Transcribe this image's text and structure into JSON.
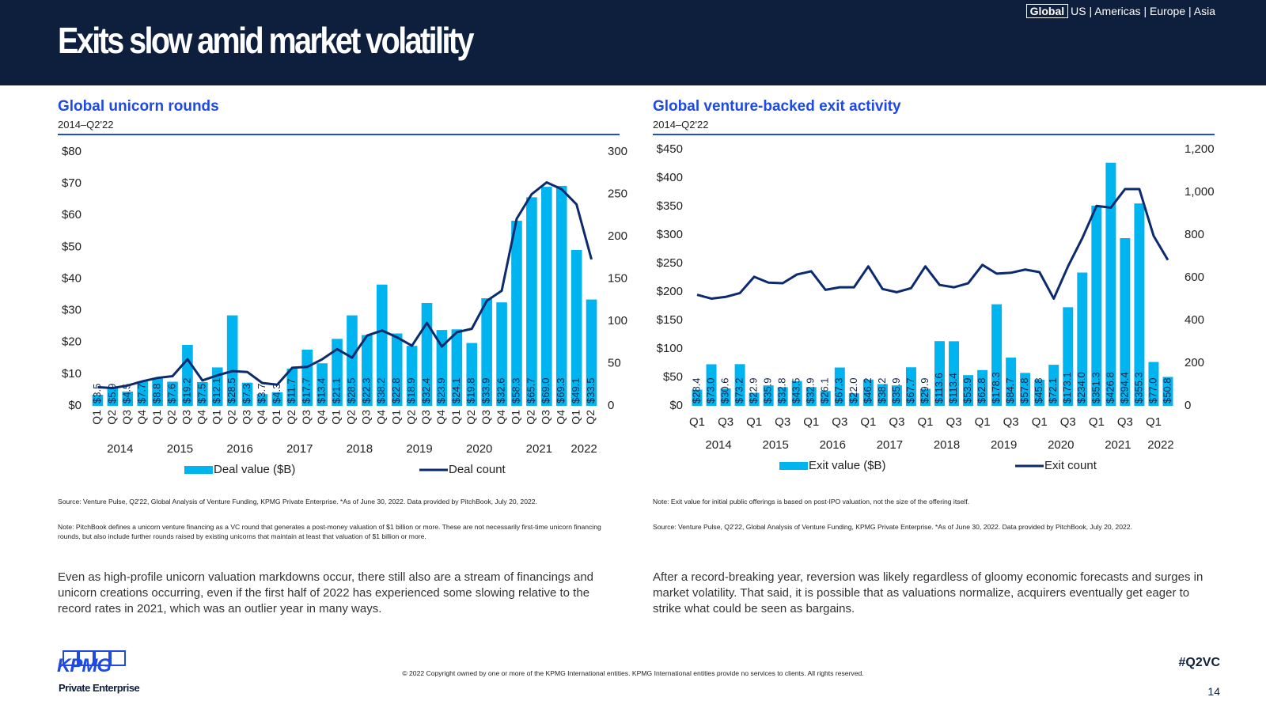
{
  "header": {
    "title": "Exits slow amid market volatility",
    "nav_active": "Global",
    "nav_rest": "US | Americas | Europe | Asia"
  },
  "chart_data": [
    {
      "type": "bar_line",
      "title": "Global unicorn rounds",
      "subtitle": "2014–Q2'22",
      "categories": [
        "Q1",
        "Q2",
        "Q3",
        "Q4",
        "Q1",
        "Q2",
        "Q3",
        "Q4",
        "Q1",
        "Q2",
        "Q3",
        "Q4",
        "Q1",
        "Q2",
        "Q3",
        "Q4",
        "Q1",
        "Q2",
        "Q3",
        "Q4",
        "Q1",
        "Q2",
        "Q3",
        "Q4",
        "Q1",
        "Q2",
        "Q3",
        "Q4",
        "Q1",
        "Q2",
        "Q3",
        "Q4",
        "Q1",
        "Q2"
      ],
      "years": [
        "2014",
        "2015",
        "2016",
        "2017",
        "2018",
        "2019",
        "2020",
        "2021",
        "2022"
      ],
      "series": [
        {
          "name": "Deal value ($B)",
          "kind": "bar",
          "color": "#00b4f0",
          "values": [
            3.5,
            5.9,
            4.5,
            7.7,
            8.8,
            7.6,
            19.2,
            7.5,
            12.1,
            28.5,
            7.3,
            3.7,
            4.3,
            11.7,
            17.7,
            13.4,
            21.1,
            28.5,
            22.3,
            38.2,
            22.8,
            18.9,
            32.4,
            23.9,
            24.1,
            19.8,
            33.9,
            32.6,
            58.3,
            65.7,
            69.0,
            69.3,
            49.1,
            33.5
          ],
          "value_labels": [
            "$3.5",
            "$5.9",
            "$4.5",
            "$7.7",
            "$8.8",
            "$7.6",
            "$19.2",
            "$7.5",
            "$12.1",
            "$28.5",
            "$7.3",
            "$3.7",
            "$4.3",
            "$11.7",
            "$17.7",
            "$13.4",
            "$21.1",
            "$28.5",
            "$22.3",
            "$38.2",
            "$22.8",
            "$18.9",
            "$32.4",
            "$23.9",
            "$24.1",
            "$19.8",
            "$33.9",
            "$32.6",
            "$58.3",
            "$65.7",
            "$69.0",
            "$69.3",
            "$49.1",
            "$33.5"
          ]
        },
        {
          "name": "Deal count",
          "kind": "line",
          "axis": "y2",
          "color": "#0c2a6e",
          "values": [
            22,
            21,
            24,
            29,
            33,
            35,
            55,
            30,
            36,
            41,
            40,
            27,
            25,
            45,
            46,
            55,
            67,
            57,
            83,
            89,
            81,
            71,
            98,
            70,
            87,
            91,
            124,
            136,
            221,
            250,
            264,
            256,
            238,
            173
          ]
        }
      ],
      "ylim": [
        0,
        80
      ],
      "yticks": [
        {
          "value": 0,
          "label": "$0"
        },
        {
          "value": 10,
          "label": "$10"
        },
        {
          "value": 20,
          "label": "$20"
        },
        {
          "value": 30,
          "label": "$30"
        },
        {
          "value": 40,
          "label": "$40"
        },
        {
          "value": 50,
          "label": "$50"
        },
        {
          "value": 60,
          "label": "$60"
        },
        {
          "value": 70,
          "label": "$70"
        },
        {
          "value": 80,
          "label": "$80"
        }
      ],
      "y2lim": [
        0,
        300
      ],
      "y2ticks": [
        0,
        50,
        100,
        150,
        200,
        250,
        300
      ],
      "grid": false
    },
    {
      "type": "bar_line",
      "title": "Global venture-backed exit activity",
      "subtitle": "2014–Q2'22",
      "categories": [
        "Q1",
        null,
        "Q3",
        null,
        "Q1",
        null,
        "Q3",
        null,
        "Q1",
        null,
        "Q3",
        null,
        "Q1",
        null,
        "Q3",
        null,
        "Q1",
        null,
        "Q3",
        null,
        "Q1",
        null,
        "Q3",
        null,
        "Q1",
        null,
        "Q3",
        null,
        "Q1",
        null,
        "Q3",
        null,
        "Q1",
        null
      ],
      "years": [
        "2014",
        "2015",
        "2016",
        "2017",
        "2018",
        "2019",
        "2020",
        "2021",
        "2022"
      ],
      "series": [
        {
          "name": "Exit value ($B)",
          "kind": "bar",
          "color": "#00b4f0",
          "values": [
            28.4,
            73.0,
            30.6,
            73.2,
            22.9,
            35.9,
            32.8,
            43.5,
            32.9,
            26.1,
            67.3,
            22.0,
            46.2,
            38.2,
            35.9,
            67.7,
            29.9,
            113.6,
            113.4,
            53.9,
            62.8,
            178.3,
            84.7,
            57.8,
            45.8,
            72.1,
            173.1,
            234.0,
            351.3,
            426.8,
            294.4,
            355.3,
            77.0,
            50.8
          ],
          "value_labels": [
            "$28.4",
            "$73.0",
            "$30.6",
            "$73.2",
            "$22.9",
            "$35.9",
            "$32.8",
            "$43.5",
            "$32.9",
            "$26.1",
            "$67.3",
            "$22.0",
            "$46.2",
            "$38.2",
            "$35.9",
            "$67.7",
            "$29.9",
            "$113.6",
            "$113.4",
            "$53.9",
            "$62.8",
            "$178.3",
            "$84.7",
            "$57.8",
            "$45.8",
            "$72.1",
            "$173.1",
            "$234.0",
            "$351.3",
            "$426.8",
            "$294.4",
            "$355.3",
            "$77.0",
            "$50.8"
          ]
        },
        {
          "name": "Exit count",
          "kind": "line",
          "axis": "y2",
          "color": "#0c2a6e",
          "values": [
            520,
            502,
            510,
            528,
            604,
            577,
            574,
            615,
            630,
            543,
            555,
            555,
            653,
            547,
            532,
            551,
            653,
            566,
            555,
            574,
            660,
            619,
            623,
            638,
            626,
            502,
            653,
            785,
            936,
            928,
            1015,
            1015,
            796,
            683
          ]
        }
      ],
      "ylim": [
        0,
        450
      ],
      "yticks": [
        {
          "value": 0,
          "label": "$0"
        },
        {
          "value": 50,
          "label": "$50"
        },
        {
          "value": 100,
          "label": "$100"
        },
        {
          "value": 150,
          "label": "$150"
        },
        {
          "value": 200,
          "label": "$200"
        },
        {
          "value": 250,
          "label": "$250"
        },
        {
          "value": 300,
          "label": "$300"
        },
        {
          "value": 350,
          "label": "$350"
        },
        {
          "value": 400,
          "label": "$400"
        },
        {
          "value": 450,
          "label": "$450"
        }
      ],
      "y2lim": [
        0,
        1200
      ],
      "y2ticks": [
        0,
        200,
        400,
        600,
        800,
        {
          "value": 1000,
          "label": "1,000"
        },
        {
          "value": 1200,
          "label": "1,200"
        }
      ],
      "grid": false
    }
  ],
  "panels": [
    {
      "notes": [
        "Source: Venture Pulse, Q2'22, Global Analysis of Venture Funding, KPMG Private Enterprise. *As of June 30, 2022. Data provided by PitchBook, July 20, 2022.",
        "Note: PitchBook defines a unicorn venture financing as a VC round that generates a post-money valuation of $1 billion or more. These are not necessarily first-time unicorn financing rounds, but also include further rounds raised by existing unicorns that maintain at least that valuation of $1 billion or more."
      ],
      "commentary": "Even as high-profile unicorn valuation markdowns occur, there still also are a stream of financings and unicorn creations occurring, even if the first half of 2022 has experienced some slowing relative to the record rates in 2021, which was an outlier year in many ways."
    },
    {
      "notes": [
        "Note: Exit value for initial public offerings is based on post-IPO valuation, not the size of the offering itself.",
        "Source: Venture Pulse, Q2'22, Global Analysis of Venture Funding, KPMG Private Enterprise. *As of June 30, 2022. Data provided by PitchBook, July 20, 2022."
      ],
      "commentary": "After a record-breaking year, reversion was likely regardless of gloomy economic forecasts and surges in market volatility. That said, it is possible that as valuations normalize, acquirers eventually get eager to strike what could be seen as bargains."
    }
  ],
  "footer": {
    "logo": "KPMG",
    "logo_sub": "Private Enterprise",
    "copyright": "© 2022 Copyright owned by one or more of the KPMG International entities. KPMG International entities provide no services to clients. All rights reserved.",
    "hashtag": "#Q2VC",
    "page": "14"
  }
}
